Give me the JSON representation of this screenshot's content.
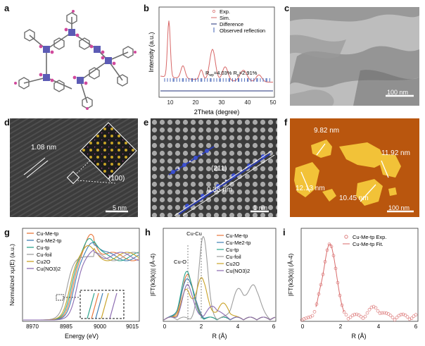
{
  "letters": [
    "a",
    "b",
    "c",
    "d",
    "e",
    "f",
    "g",
    "h",
    "i"
  ],
  "panel_b": {
    "legend": [
      "Exp.",
      "Sim.",
      "Difference",
      "Observed reflection"
    ],
    "ylabel": "Intensity (a.u.)",
    "xlabel": "2Theta (degree)",
    "xticks": [
      "10",
      "20",
      "30",
      "40",
      "50"
    ],
    "rfactors": "Rwp=4.03% Rp=2.91%",
    "rfactor_parts": [
      "R",
      "wp",
      "=4.03% R",
      "p",
      "=2.91%"
    ]
  },
  "panel_c": {
    "scale": "100 nm"
  },
  "panel_d": {
    "spacing": "1.08 nm",
    "plane": "(100)",
    "scale": "5 nm"
  },
  "panel_e": {
    "plane": "(211)",
    "spacing": "0.35 nm",
    "scale": "1 nm"
  },
  "panel_f": {
    "heights": [
      "9.82 nm",
      "11.92 nm",
      "12.13 nm",
      "10.45 nm"
    ],
    "scale": "100 nm"
  },
  "panel_g": {
    "legend": [
      "Cu-Me-tp",
      "Cu-Me2-tp",
      "Cu-tp",
      "Cu-foil",
      "Cu2O",
      "Cu(NO3)2"
    ],
    "ylabel": "Normalized xμ(E) (a.u.)",
    "xlabel": "Energy (eV)",
    "xticks": [
      "8970",
      "8985",
      "9000",
      "9015"
    ]
  },
  "panel_h": {
    "legend": [
      "Cu-Me-tp",
      "Cu-Me2-tp",
      "Cu-tp",
      "Cu-foil",
      "Cu2O",
      "Cu(NO3)2"
    ],
    "annotations": [
      "Cu-Cu",
      "Cu-O"
    ],
    "ylabel": "|FT(k3(k))| (Å-4)",
    "xlabel": "R (Å)",
    "xticks": [
      "0",
      "2",
      "4",
      "6"
    ]
  },
  "panel_i": {
    "legend": [
      "Cu-Me-tp Exp.",
      "Cu-Me-tp Fit."
    ],
    "ylabel": "|FT(k3(k))| (Å-4)",
    "xlabel": "R (Å)",
    "xticks": [
      "0",
      "2",
      "4",
      "6"
    ]
  },
  "colors": {
    "me_tp": "#e8763a",
    "me2_tp": "#3f7fb5",
    "tp": "#2ca58d",
    "foil": "#9e9e9e",
    "cu2o": "#c9a227",
    "cuno3": "#8c6bb1",
    "exp": "#d86a6a",
    "navy": "#1f2f7a"
  }
}
